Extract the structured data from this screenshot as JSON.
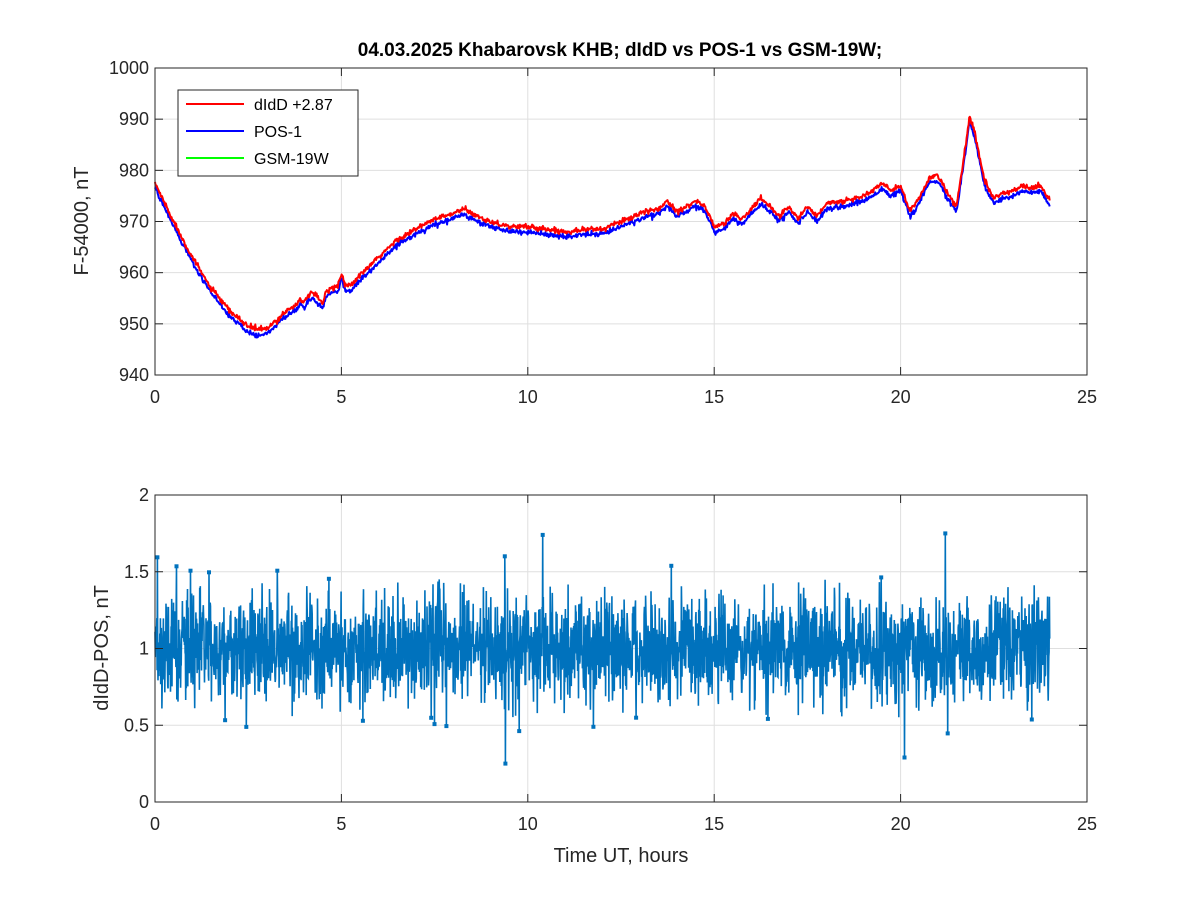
{
  "chart_data": [
    {
      "type": "line",
      "title": "04.03.2025  Khabarovsk KHB; dIdD vs POS-1 vs GSM-19W;",
      "xlabel": "",
      "ylabel": "F-54000, nT",
      "xlim": [
        0,
        25
      ],
      "ylim": [
        940,
        1000
      ],
      "xticks": [
        "0",
        "5",
        "10",
        "15",
        "20",
        "25"
      ],
      "yticks": [
        "940",
        "950",
        "960",
        "970",
        "980",
        "990",
        "1000"
      ],
      "grid": true,
      "legend_position": "top-left",
      "series": [
        {
          "name": "dIdD +2.87",
          "color": "#ff0000",
          "x": [
            0,
            0.5,
            1,
            1.5,
            2,
            2.5,
            2.75,
            3,
            3.25,
            3.5,
            3.75,
            3.9,
            4,
            4.1,
            4.25,
            4.5,
            4.6,
            4.75,
            4.9,
            5,
            5.1,
            5.25,
            5.5,
            6,
            6.5,
            7,
            7.5,
            8,
            8.25,
            8.5,
            9,
            9.5,
            10,
            10.5,
            11,
            11.5,
            12,
            12.5,
            13,
            13.5,
            13.75,
            14,
            14.5,
            14.75,
            15,
            15.25,
            15.5,
            15.75,
            16,
            16.25,
            16.5,
            16.75,
            17,
            17.25,
            17.5,
            17.75,
            18,
            18.5,
            19,
            19.25,
            19.5,
            19.75,
            20,
            20.25,
            20.5,
            20.75,
            21,
            21.25,
            21.5,
            21.75,
            21.85,
            22,
            22.25,
            22.5,
            22.75,
            23,
            23.25,
            23.5,
            23.75,
            24
          ],
          "y": [
            977.5,
            970,
            963,
            957,
            952.5,
            949.5,
            949,
            949,
            950.5,
            952.5,
            953.5,
            955,
            954,
            955.5,
            956,
            954,
            956.5,
            957,
            957.5,
            960,
            957.5,
            957.5,
            959.5,
            963,
            966.5,
            968.5,
            970.5,
            971.5,
            972.5,
            971.5,
            970,
            969,
            969,
            968.5,
            968,
            968.5,
            968.5,
            970,
            971.5,
            972.5,
            974,
            972,
            974,
            973,
            969,
            969.5,
            971.5,
            970.5,
            972.5,
            974.5,
            973,
            971,
            973,
            970.5,
            973,
            971,
            973.5,
            974,
            975,
            976,
            977.5,
            976,
            977,
            972,
            974.5,
            978.5,
            979,
            975.5,
            973,
            985,
            990.5,
            987,
            978,
            974.5,
            975.5,
            976,
            977,
            976.5,
            977,
            974
          ]
        },
        {
          "name": "POS-1",
          "color": "#0000ff",
          "x": [
            0,
            0.5,
            1,
            1.5,
            2,
            2.5,
            2.75,
            3,
            3.25,
            3.5,
            3.75,
            3.9,
            4,
            4.1,
            4.25,
            4.5,
            4.6,
            4.75,
            4.9,
            5,
            5.1,
            5.25,
            5.5,
            6,
            6.5,
            7,
            7.5,
            8,
            8.25,
            8.5,
            9,
            9.5,
            10,
            10.5,
            11,
            11.5,
            12,
            12.5,
            13,
            13.5,
            13.75,
            14,
            14.5,
            14.75,
            15,
            15.25,
            15.5,
            15.75,
            16,
            16.25,
            16.5,
            16.75,
            17,
            17.25,
            17.5,
            17.75,
            18,
            18.5,
            19,
            19.25,
            19.5,
            19.75,
            20,
            20.25,
            20.5,
            20.75,
            21,
            21.25,
            21.5,
            21.75,
            21.85,
            22,
            22.25,
            22.5,
            22.75,
            23,
            23.25,
            23.5,
            23.75,
            24
          ],
          "y": [
            976.5,
            969,
            962,
            956,
            951.5,
            948.5,
            947.5,
            948,
            949.5,
            951.5,
            952.5,
            954,
            953,
            954.5,
            955,
            953,
            955.5,
            956,
            956.5,
            959,
            956.5,
            956.5,
            958.5,
            962,
            965.5,
            967.5,
            969.5,
            970.5,
            971.5,
            970.5,
            969,
            968,
            968,
            967.5,
            967,
            967.5,
            967.5,
            969,
            970.5,
            971.5,
            973,
            971,
            973,
            972,
            968,
            968.5,
            970.5,
            969.5,
            971.5,
            973.5,
            972,
            970,
            972,
            969.5,
            972,
            970,
            972.5,
            973,
            974,
            975,
            976.5,
            975,
            976,
            971,
            973.5,
            977.5,
            978,
            974.5,
            972,
            984,
            989.5,
            986,
            977,
            973.5,
            974.5,
            975,
            976,
            975.5,
            976,
            973
          ]
        },
        {
          "name": "GSM-19W",
          "color": "#00ff00",
          "x": [],
          "y": []
        }
      ]
    },
    {
      "type": "line",
      "title": "",
      "xlabel": "Time UT, hours",
      "ylabel": "dIdD-POS, nT",
      "xlim": [
        0,
        25
      ],
      "ylim": [
        0,
        2
      ],
      "xticks": [
        "0",
        "5",
        "10",
        "15",
        "20",
        "25"
      ],
      "yticks": [
        "0",
        "0.5",
        "1",
        "1.5",
        "2"
      ],
      "grid": true,
      "series": [
        {
          "name": "",
          "color": "#0072bd",
          "marker": "square",
          "x_range": [
            0,
            24
          ],
          "mean": 1.0,
          "band": [
            0.55,
            1.4
          ],
          "peaks": [
            {
              "x": 10.4,
              "y": 1.74
            },
            {
              "x": 21.2,
              "y": 1.75
            },
            {
              "x": 9.4,
              "y": 0.25
            },
            {
              "x": 20.1,
              "y": 0.29
            }
          ]
        }
      ]
    }
  ]
}
